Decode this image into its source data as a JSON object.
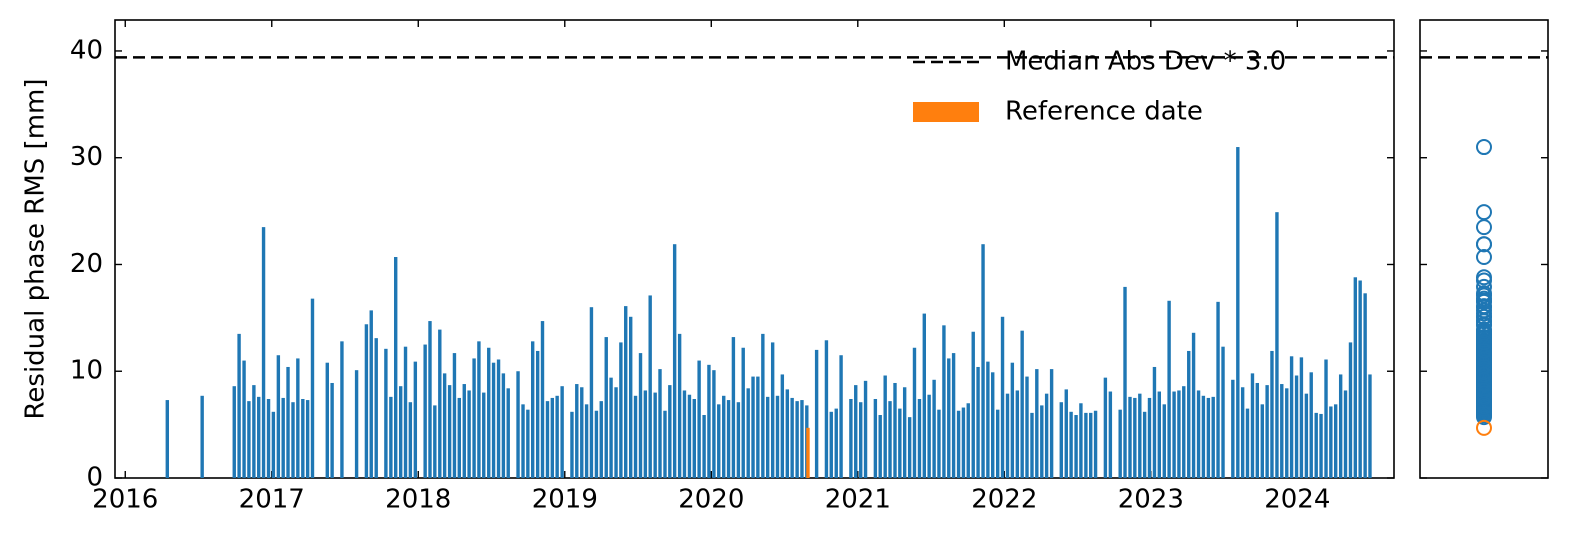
{
  "chart_data": {
    "type": "bar",
    "ylabel": "Residual phase RMS [mm]",
    "xlim": [
      2015.93,
      2024.66
    ],
    "xticks": [
      2016,
      2017,
      2018,
      2019,
      2020,
      2021,
      2022,
      2023,
      2024
    ],
    "ylim": [
      0,
      42.9
    ],
    "yticks": [
      0,
      10,
      20,
      30,
      40
    ],
    "legend": "upper right",
    "hlines": [
      {
        "value": 39.4,
        "label": "Median Abs Dev * 3.0",
        "color": "#000000",
        "style": "dashed"
      }
    ],
    "series": [
      {
        "color": "#1f77b4",
        "x": [
          2016.287,
          2016.525,
          2016.744,
          2016.777,
          2016.811,
          2016.844,
          2016.878,
          2016.911,
          2016.944,
          2016.978,
          2017.011,
          2017.045,
          2017.078,
          2017.111,
          2017.145,
          2017.178,
          2017.212,
          2017.245,
          2017.278,
          2017.379,
          2017.412,
          2017.479,
          2017.579,
          2017.646,
          2017.679,
          2017.713,
          2017.779,
          2017.813,
          2017.846,
          2017.88,
          2017.913,
          2017.946,
          2017.98,
          2018.047,
          2018.08,
          2018.113,
          2018.147,
          2018.18,
          2018.214,
          2018.247,
          2018.28,
          2018.314,
          2018.347,
          2018.381,
          2018.414,
          2018.447,
          2018.481,
          2018.514,
          2018.548,
          2018.581,
          2018.614,
          2018.681,
          2018.715,
          2018.748,
          2018.781,
          2018.815,
          2018.848,
          2018.882,
          2018.915,
          2018.948,
          2018.982,
          2019.049,
          2019.082,
          2019.116,
          2019.149,
          2019.182,
          2019.216,
          2019.249,
          2019.283,
          2019.316,
          2019.35,
          2019.383,
          2019.416,
          2019.45,
          2019.483,
          2019.517,
          2019.55,
          2019.583,
          2019.617,
          2019.65,
          2019.684,
          2019.717,
          2019.75,
          2019.784,
          2019.817,
          2019.851,
          2019.884,
          2019.917,
          2019.951,
          2019.984,
          2020.018,
          2020.051,
          2020.085,
          2020.118,
          2020.151,
          2020.185,
          2020.218,
          2020.252,
          2020.285,
          2020.318,
          2020.352,
          2020.385,
          2020.419,
          2020.452,
          2020.485,
          2020.519,
          2020.552,
          2020.586,
          2020.619,
          2020.652,
          2020.719,
          2020.786,
          2020.819,
          2020.853,
          2020.886,
          2020.953,
          2020.986,
          2021.02,
          2021.053,
          2021.12,
          2021.153,
          2021.187,
          2021.22,
          2021.254,
          2021.287,
          2021.32,
          2021.354,
          2021.387,
          2021.421,
          2021.454,
          2021.487,
          2021.521,
          2021.554,
          2021.588,
          2021.621,
          2021.654,
          2021.688,
          2021.721,
          2021.754,
          2021.788,
          2021.821,
          2021.855,
          2021.888,
          2021.921,
          2021.955,
          2021.988,
          2022.022,
          2022.055,
          2022.089,
          2022.122,
          2022.155,
          2022.189,
          2022.222,
          2022.256,
          2022.289,
          2022.323,
          2022.389,
          2022.423,
          2022.456,
          2022.49,
          2022.523,
          2022.557,
          2022.59,
          2022.623,
          2022.69,
          2022.724,
          2022.791,
          2022.824,
          2022.858,
          2022.891,
          2022.925,
          2022.958,
          2022.991,
          2023.025,
          2023.058,
          2023.092,
          2023.125,
          2023.159,
          2023.192,
          2023.225,
          2023.259,
          2023.292,
          2023.326,
          2023.359,
          2023.393,
          2023.426,
          2023.459,
          2023.493,
          2023.56,
          2023.594,
          2023.627,
          2023.66,
          2023.694,
          2023.727,
          2023.761,
          2023.794,
          2023.827,
          2023.861,
          2023.894,
          2023.928,
          2023.961,
          2023.995,
          2024.028,
          2024.062,
          2024.095,
          2024.129,
          2024.162,
          2024.196,
          2024.229,
          2024.262,
          2024.296,
          2024.329,
          2024.363,
          2024.396,
          2024.429,
          2024.463,
          2024.496
        ],
        "values": [
          7.3,
          7.7,
          8.6,
          13.5,
          11.0,
          7.2,
          8.7,
          7.6,
          23.5,
          7.4,
          6.2,
          11.5,
          7.5,
          10.4,
          7.1,
          11.2,
          7.4,
          7.3,
          16.8,
          10.8,
          8.9,
          12.8,
          10.1,
          14.4,
          15.7,
          13.1,
          12.1,
          7.6,
          20.7,
          8.6,
          12.3,
          7.1,
          10.9,
          12.5,
          14.7,
          6.8,
          13.9,
          9.8,
          8.7,
          11.7,
          7.5,
          8.8,
          8.2,
          11.2,
          12.8,
          8.0,
          12.2,
          10.8,
          11.1,
          9.8,
          8.4,
          10.0,
          6.9,
          6.4,
          12.8,
          11.9,
          14.7,
          7.2,
          7.5,
          7.7,
          8.6,
          6.2,
          8.8,
          8.5,
          6.9,
          16.0,
          6.3,
          7.2,
          13.2,
          9.4,
          8.5,
          12.7,
          16.1,
          15.1,
          7.7,
          11.7,
          8.2,
          17.1,
          8.0,
          10.2,
          6.3,
          8.7,
          21.9,
          13.5,
          8.2,
          7.8,
          7.4,
          11.0,
          5.9,
          10.6,
          10.1,
          6.9,
          7.7,
          7.3,
          13.2,
          7.1,
          12.2,
          8.4,
          9.5,
          9.5,
          13.5,
          7.6,
          12.7,
          7.7,
          9.7,
          8.3,
          7.5,
          7.2,
          7.3,
          6.8,
          12.0,
          12.9,
          6.2,
          6.5,
          11.5,
          7.4,
          8.7,
          7.1,
          9.1,
          7.4,
          5.9,
          9.6,
          7.2,
          8.9,
          6.5,
          8.5,
          5.7,
          12.2,
          7.4,
          15.4,
          7.8,
          9.2,
          6.4,
          14.3,
          11.2,
          11.7,
          6.3,
          6.6,
          7.0,
          13.7,
          10.4,
          21.9,
          10.9,
          9.9,
          6.4,
          15.1,
          7.9,
          10.8,
          8.2,
          13.8,
          9.5,
          6.1,
          10.2,
          6.8,
          7.9,
          10.2,
          7.1,
          8.3,
          6.2,
          5.9,
          7.0,
          6.1,
          6.1,
          6.3,
          9.4,
          8.1,
          6.4,
          17.9,
          7.6,
          7.5,
          7.9,
          6.2,
          7.5,
          10.4,
          8.1,
          6.9,
          16.6,
          8.1,
          8.2,
          8.6,
          11.9,
          13.6,
          8.2,
          7.7,
          7.5,
          7.6,
          16.5,
          12.3,
          9.2,
          31.0,
          8.5,
          6.5,
          9.8,
          8.9,
          6.9,
          8.7,
          11.9,
          24.9,
          8.8,
          8.4,
          11.4,
          9.6,
          11.3,
          7.9,
          9.9,
          6.1,
          6.0,
          11.1,
          6.7,
          6.9,
          9.7,
          8.2,
          12.7,
          18.8,
          18.5,
          17.3,
          9.7
        ]
      },
      {
        "name": "Reference date",
        "color": "#ff7f0e",
        "x": [
          2020.66
        ],
        "values": [
          4.7
        ]
      }
    ]
  }
}
